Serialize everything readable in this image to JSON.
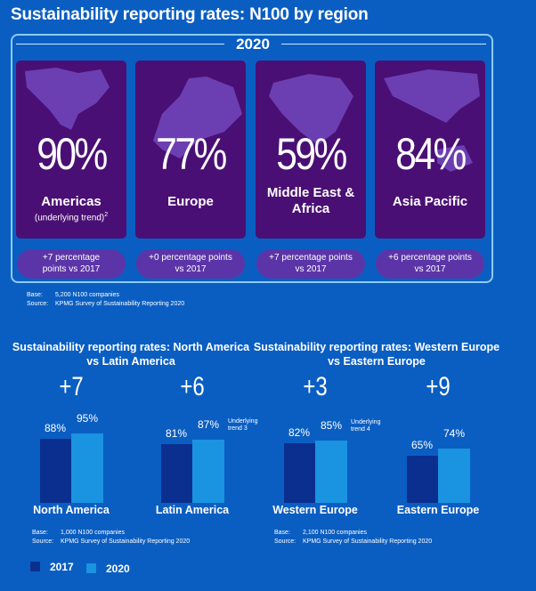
{
  "title": "Sustainability reporting rates: N100 by region",
  "year": "2020",
  "regions": [
    {
      "pct": "90%",
      "name": "Americas",
      "sub": "(underlying trend)",
      "sup": "2",
      "change": "+7 percentage points vs 2017",
      "map": "americas-map"
    },
    {
      "pct": "77%",
      "name": "Europe",
      "change": "+0 percentage points vs 2017",
      "map": "europe-map"
    },
    {
      "pct": "59%",
      "name": "Middle East & Africa",
      "change": "+7 percentage points vs 2017",
      "map": "africa-map"
    },
    {
      "pct": "84%",
      "name": "Asia Pacific",
      "change": "+6 percentage points vs 2017",
      "map": "asia-map"
    }
  ],
  "top_note": {
    "base_label": "Base:",
    "base": "5,200 N100 companies",
    "source_label": "Source:",
    "source": "KPMG Survey of Sustainability Reporting 2020"
  },
  "colors": {
    "c2017": "#0b2f8f",
    "c2020": "#1a93e0",
    "background": "#0a5ec2",
    "card": "#4a0f74"
  },
  "chart_data": [
    {
      "type": "bar",
      "title": "Sustainability reporting rates: North America vs Latin America",
      "categories": [
        "North America",
        "Latin America"
      ],
      "series": [
        {
          "name": "2017",
          "values": [
            88,
            81
          ]
        },
        {
          "name": "2020",
          "values": [
            95,
            87
          ]
        }
      ],
      "labels_2017": [
        "88%",
        "81%"
      ],
      "labels_2020": [
        "95%",
        "87%"
      ],
      "changes": [
        "+7",
        "+6"
      ],
      "annotations": [
        "",
        "Underlying trend 3"
      ],
      "note": {
        "base_label": "Base:",
        "base": "1,000 N100 companies",
        "source_label": "Source:",
        "source": "KPMG Survey of Sustainability Reporting 2020"
      },
      "ylim": [
        0,
        100
      ]
    },
    {
      "type": "bar",
      "title": "Sustainability reporting rates: Western Europe vs Eastern Europe",
      "categories": [
        "Western Europe",
        "Eastern Europe"
      ],
      "series": [
        {
          "name": "2017",
          "values": [
            82,
            65
          ]
        },
        {
          "name": "2020",
          "values": [
            85,
            74
          ]
        }
      ],
      "labels_2017": [
        "82%",
        "65%"
      ],
      "labels_2020": [
        "85%",
        "74%"
      ],
      "changes": [
        "+3",
        "+9"
      ],
      "annotations": [
        "Underlying trend 4",
        ""
      ],
      "note": {
        "base_label": "Base:",
        "base": "2,100 N100 companies",
        "source_label": "Source:",
        "source": "KPMG Survey of Sustainability Reporting 2020"
      },
      "ylim": [
        0,
        100
      ]
    }
  ],
  "legend": [
    {
      "label": "2017"
    },
    {
      "label": "2020"
    }
  ]
}
